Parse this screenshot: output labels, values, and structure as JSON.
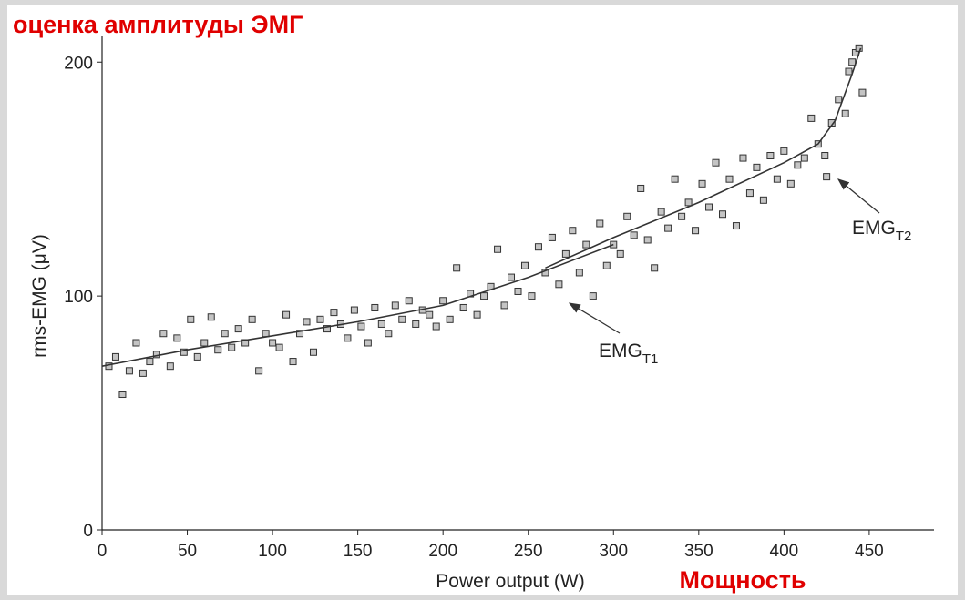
{
  "chart_data": {
    "type": "scatter",
    "title": "оценка амплитуды ЭМГ",
    "x_label": "Power output (W)",
    "x_label_ru": "Мощность",
    "y_label": "rms-EMG (μV)",
    "xlim": [
      0,
      488
    ],
    "ylim": [
      0,
      211
    ],
    "xticks": [
      0,
      50,
      100,
      150,
      200,
      250,
      300,
      350,
      400,
      450
    ],
    "yticks": [
      0,
      100,
      200
    ],
    "marker_fill": "#c4c4c4",
    "marker_edge": "#333333",
    "line_color": "#333333",
    "title_color": "#e00000",
    "x": [
      4,
      8,
      12,
      16,
      20,
      24,
      28,
      32,
      36,
      40,
      44,
      48,
      52,
      56,
      60,
      64,
      68,
      72,
      76,
      80,
      84,
      88,
      92,
      96,
      100,
      104,
      108,
      112,
      116,
      120,
      124,
      128,
      132,
      136,
      140,
      144,
      148,
      152,
      156,
      160,
      164,
      168,
      172,
      176,
      180,
      184,
      188,
      192,
      196,
      200,
      204,
      208,
      212,
      216,
      220,
      224,
      228,
      232,
      236,
      240,
      244,
      248,
      252,
      256,
      260,
      264,
      268,
      272,
      276,
      280,
      284,
      288,
      292,
      296,
      300,
      304,
      308,
      312,
      316,
      320,
      324,
      328,
      332,
      336,
      340,
      344,
      348,
      352,
      356,
      360,
      364,
      368,
      372,
      376,
      380,
      384,
      388,
      392,
      396,
      400,
      404,
      408,
      412,
      416,
      420,
      424,
      425,
      428,
      432,
      436,
      438,
      440,
      442,
      444,
      446
    ],
    "values": [
      70,
      74,
      58,
      68,
      80,
      67,
      72,
      75,
      84,
      70,
      82,
      76,
      90,
      74,
      80,
      91,
      77,
      84,
      78,
      86,
      80,
      90,
      68,
      84,
      80,
      78,
      92,
      72,
      84,
      89,
      76,
      90,
      86,
      93,
      88,
      82,
      94,
      87,
      80,
      95,
      88,
      84,
      96,
      90,
      98,
      88,
      94,
      92,
      87,
      98,
      90,
      112,
      95,
      101,
      92,
      100,
      104,
      120,
      96,
      108,
      102,
      113,
      100,
      121,
      110,
      125,
      105,
      118,
      128,
      110,
      122,
      100,
      131,
      113,
      122,
      118,
      134,
      126,
      146,
      124,
      112,
      136,
      129,
      150,
      134,
      140,
      128,
      148,
      138,
      157,
      135,
      150,
      130,
      159,
      144,
      155,
      141,
      160,
      150,
      162,
      148,
      156,
      159,
      176,
      165,
      160,
      151,
      174,
      184,
      178,
      196,
      200,
      204,
      206,
      187
    ],
    "fit_lines": [
      {
        "x": [
          0,
          50,
          100,
          150,
          200,
          250,
          300
        ],
        "y": [
          70,
          77,
          83,
          89,
          96,
          108,
          122
        ]
      },
      {
        "x": [
          260,
          300,
          350,
          400,
          420,
          430,
          440,
          445
        ],
        "y": [
          112,
          125,
          140,
          157,
          165,
          175,
          195,
          206
        ]
      }
    ],
    "annotations": [
      {
        "text": "EMG",
        "sub": "T1"
      },
      {
        "text": "EMG",
        "sub": "T2"
      }
    ]
  }
}
